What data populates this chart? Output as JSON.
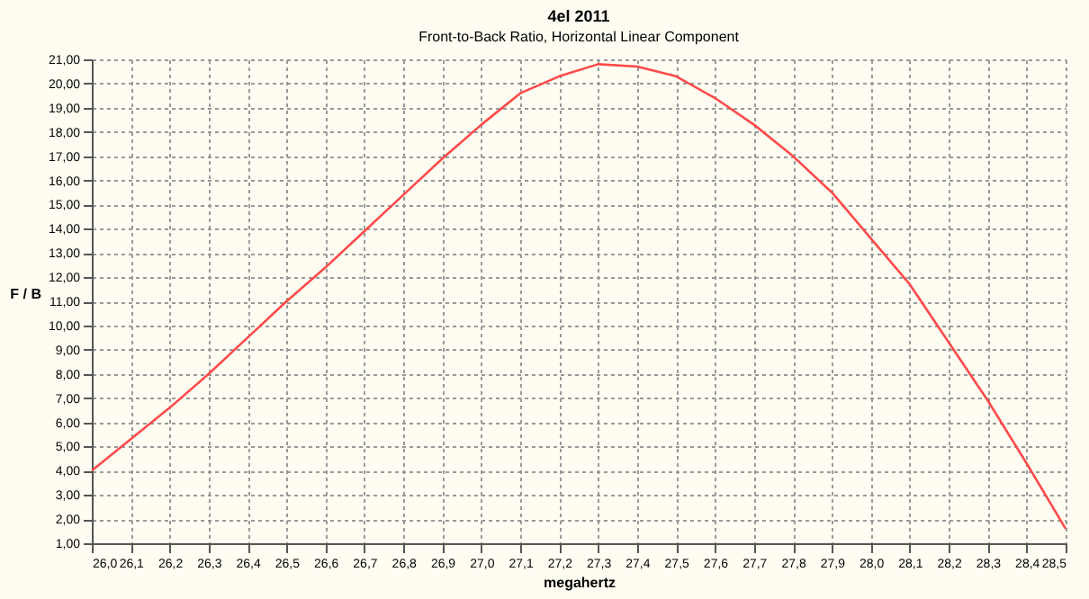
{
  "chart_data": {
    "type": "line",
    "title": "4el 2011",
    "subtitle": "Front-to-Back Ratio, Horizontal Linear Component",
    "xlabel": "megahertz",
    "ylabel": "F / B",
    "x": [
      26.0,
      26.1,
      26.2,
      26.3,
      26.4,
      26.5,
      26.6,
      26.7,
      26.8,
      26.9,
      27.0,
      27.1,
      27.2,
      27.3,
      27.4,
      27.5,
      27.6,
      27.7,
      27.8,
      27.9,
      28.0,
      28.1,
      28.2,
      28.3,
      28.4,
      28.5
    ],
    "series": [
      {
        "color": "#ff4a4a",
        "values": [
          4.0,
          5.3,
          6.6,
          8.0,
          9.5,
          11.0,
          12.4,
          13.9,
          15.4,
          16.9,
          18.3,
          19.6,
          20.3,
          20.8,
          20.7,
          20.3,
          19.4,
          18.3,
          17.0,
          15.5,
          13.6,
          11.7,
          9.3,
          6.9,
          4.3,
          1.6
        ]
      }
    ],
    "xlim": [
      26.0,
      28.5
    ],
    "xticks": [
      {
        "value": 26.0,
        "label": "26,0"
      },
      {
        "value": 26.1,
        "label": "26,1"
      },
      {
        "value": 26.2,
        "label": "26,2"
      },
      {
        "value": 26.3,
        "label": "26,3"
      },
      {
        "value": 26.4,
        "label": "26,4"
      },
      {
        "value": 26.5,
        "label": "26,5"
      },
      {
        "value": 26.6,
        "label": "26,6"
      },
      {
        "value": 26.7,
        "label": "26,7"
      },
      {
        "value": 26.8,
        "label": "26,8"
      },
      {
        "value": 26.9,
        "label": "26,9"
      },
      {
        "value": 27.0,
        "label": "27,0"
      },
      {
        "value": 27.1,
        "label": "27,1"
      },
      {
        "value": 27.2,
        "label": "27,2"
      },
      {
        "value": 27.3,
        "label": "27,3"
      },
      {
        "value": 27.4,
        "label": "27,4"
      },
      {
        "value": 27.5,
        "label": "27,5"
      },
      {
        "value": 27.6,
        "label": "27,6"
      },
      {
        "value": 27.7,
        "label": "27,7"
      },
      {
        "value": 27.8,
        "label": "27,8"
      },
      {
        "value": 27.9,
        "label": "27,9"
      },
      {
        "value": 28.0,
        "label": "28,0"
      },
      {
        "value": 28.1,
        "label": "28,1"
      },
      {
        "value": 28.2,
        "label": "28,2"
      },
      {
        "value": 28.3,
        "label": "28,3"
      },
      {
        "value": 28.4,
        "label": "28,4"
      },
      {
        "value": 28.5,
        "label": "28,5"
      }
    ],
    "ylim": [
      1,
      21
    ],
    "yticks": [
      {
        "value": 1,
        "label": "1,00"
      },
      {
        "value": 2,
        "label": "2,00"
      },
      {
        "value": 3,
        "label": "3,00"
      },
      {
        "value": 4,
        "label": "4,00"
      },
      {
        "value": 5,
        "label": "5,00"
      },
      {
        "value": 6,
        "label": "6,00"
      },
      {
        "value": 7,
        "label": "7,00"
      },
      {
        "value": 8,
        "label": "8,00"
      },
      {
        "value": 9,
        "label": "9,00"
      },
      {
        "value": 10,
        "label": "10,00"
      },
      {
        "value": 11,
        "label": "11,00"
      },
      {
        "value": 12,
        "label": "12,00"
      },
      {
        "value": 13,
        "label": "13,00"
      },
      {
        "value": 14,
        "label": "14,00"
      },
      {
        "value": 15,
        "label": "15,00"
      },
      {
        "value": 16,
        "label": "16,00"
      },
      {
        "value": 17,
        "label": "17,00"
      },
      {
        "value": 18,
        "label": "18,00"
      },
      {
        "value": 19,
        "label": "19,00"
      },
      {
        "value": 20,
        "label": "20,00"
      },
      {
        "value": 21,
        "label": "21,00"
      }
    ],
    "grid": true,
    "marker": "none",
    "line_style": "solid"
  }
}
